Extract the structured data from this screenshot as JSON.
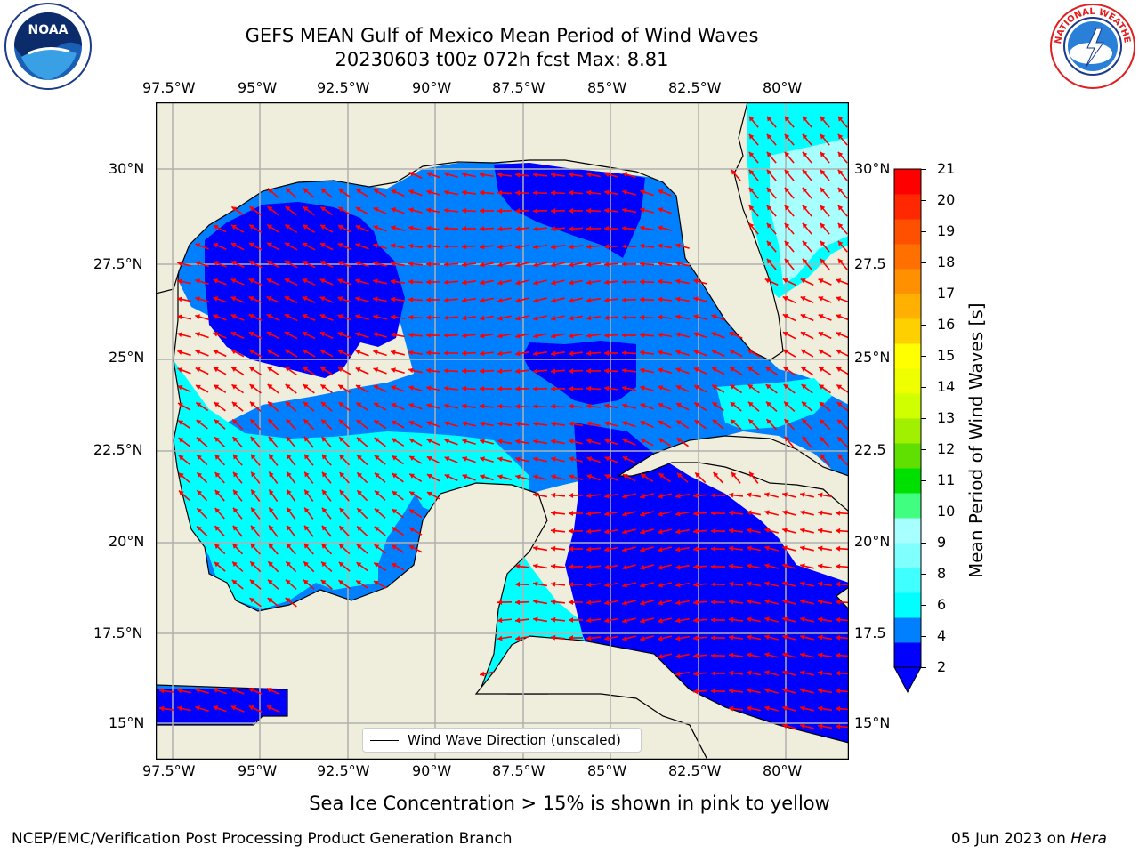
{
  "header": {
    "title_line1": "GEFS MEAN Gulf of Mexico Mean Period of Wind Waves",
    "title_line2": "20230603 t00z 072h fcst   Max: 8.81"
  },
  "logos": {
    "left": {
      "name": "noaa-logo",
      "text": "NOAA"
    },
    "right": {
      "name": "national-weather-service-logo",
      "text": "NATIONAL WEATHER SERVICE"
    }
  },
  "map": {
    "lon_ticks": [
      "97.5°W",
      "95°W",
      "92.5°W",
      "90°W",
      "87.5°W",
      "85°W",
      "82.5°W",
      "80°W"
    ],
    "lat_ticks_left": [
      "30°N",
      "27.5°N",
      "25°N",
      "22.5°N",
      "20°N",
      "17.5°N",
      "15°N"
    ],
    "lat_ticks_right": [
      "30°N",
      "27.5",
      "25°N",
      "22.5",
      "20°N",
      "17.5",
      "15°N"
    ],
    "legend_label": "Wind Wave Direction (unscaled)",
    "colors": {
      "land": "#efeddb",
      "grid": "#b0b0b0",
      "coast": "#000000",
      "arrow": "#ff0000"
    }
  },
  "colorbar": {
    "label": "Mean Period of Wind Waves [s]",
    "ticks": [
      "21",
      "20",
      "19",
      "18",
      "17",
      "16",
      "15",
      "14",
      "13",
      "12",
      "11",
      "10",
      "9",
      "8",
      "6",
      "4",
      "2"
    ],
    "colors": [
      "#0000ff",
      "#0080ff",
      "#00ffff",
      "#40ffff",
      "#80ffff",
      "#a8ffff",
      "#40ff80",
      "#00e000",
      "#60e000",
      "#a0f000",
      "#d0ff00",
      "#f0ff00",
      "#ffff00",
      "#ffd000",
      "#ffb000",
      "#ff9000",
      "#ff7000",
      "#ff5000",
      "#ff2800",
      "#ff0000"
    ]
  },
  "chart_data": {
    "type": "heatmap",
    "title": "GEFS MEAN Gulf of Mexico Mean Period of Wind Waves",
    "subtitle": "20230603 t00z 072h fcst   Max: 8.81",
    "colorbar_label": "Mean Period of Wind Waves [s]",
    "colorbar_ticks": [
      2,
      4,
      6,
      8,
      9,
      10,
      11,
      12,
      13,
      14,
      15,
      16,
      17,
      18,
      19,
      20,
      21
    ],
    "x_ticks": [
      "97.5°W",
      "95°W",
      "92.5°W",
      "90°W",
      "87.5°W",
      "85°W",
      "82.5°W",
      "80°W"
    ],
    "y_ticks": [
      "30°N",
      "27.5°N",
      "25°N",
      "22.5°N",
      "20°N",
      "17.5°N",
      "15°N"
    ],
    "max": 8.81,
    "legend": "Wind Wave Direction (unscaled)"
  },
  "footer": {
    "note": "Sea Ice Concentration > 15% is shown in pink to yellow",
    "credit": "NCEP/EMC/Verification Post Processing Product Generation Branch",
    "date": "05 Jun 2023 on ",
    "machine": "Hera"
  }
}
